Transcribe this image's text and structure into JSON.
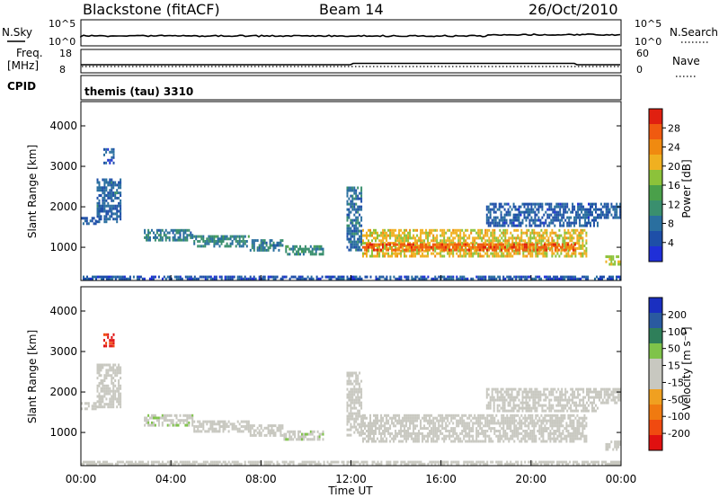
{
  "header": {
    "station": "Blackstone (fitACF)",
    "beam": "Beam 14",
    "date": "26/Oct/2010"
  },
  "aux_panels": {
    "nsky": {
      "label": "N.Sky",
      "ticks": [
        "10^5",
        "10^0"
      ]
    },
    "nsearch": {
      "label": "N.Search",
      "ticks": [
        "10^5",
        "10^0"
      ]
    },
    "freq": {
      "label_line1": "Freq.",
      "label_line2": "[MHz]",
      "ticks": [
        "18",
        "8"
      ]
    },
    "nave": {
      "label": "Nave",
      "ticks": [
        "60",
        "0"
      ]
    },
    "cpid": {
      "label": "CPID",
      "value": "themis (tau) 3310"
    }
  },
  "colors": {
    "power_scale": [
      "#1f2fd8",
      "#1e4fa8",
      "#2a6f9f",
      "#3a8f6e",
      "#4aa04a",
      "#8cc23a",
      "#f0b020",
      "#f08a10",
      "#f05a10",
      "#e02010"
    ],
    "velocity_scale": [
      "#1a2fc0",
      "#2a5aa0",
      "#2f7f5a",
      "#7fc34a",
      "#c8c8c0",
      "#c8c8c0",
      "#f0a020",
      "#f07a10",
      "#f04a10",
      "#e01010"
    ]
  },
  "chart_data": [
    {
      "type": "heatmap",
      "title": "Power",
      "xlabel": "",
      "ylabel": "Slant Range [km]",
      "xlim_hours": [
        0,
        24
      ],
      "ylim": [
        180,
        4600
      ],
      "y_ticks": [
        "1000",
        "2000",
        "3000",
        "4000"
      ],
      "colorbar": {
        "label": "Power [dB]",
        "ticks": [
          "4",
          "8",
          "12",
          "16",
          "20",
          "24",
          "28"
        ],
        "range": [
          0,
          32
        ]
      },
      "bands": [
        {
          "start_h": 0.0,
          "end_h": 0.7,
          "low_km": 1550,
          "high_km": 1750,
          "value": 6
        },
        {
          "start_h": 0.7,
          "end_h": 1.8,
          "low_km": 1600,
          "high_km": 2700,
          "value": 7
        },
        {
          "start_h": 1.0,
          "end_h": 1.5,
          "low_km": 3050,
          "high_km": 3450,
          "value": 6
        },
        {
          "start_h": 2.8,
          "end_h": 5.0,
          "low_km": 1150,
          "high_km": 1450,
          "value": 9
        },
        {
          "start_h": 5.0,
          "end_h": 7.5,
          "low_km": 1000,
          "high_km": 1300,
          "value": 10
        },
        {
          "start_h": 7.5,
          "end_h": 9.0,
          "low_km": 900,
          "high_km": 1200,
          "value": 9
        },
        {
          "start_h": 9.0,
          "end_h": 10.8,
          "low_km": 800,
          "high_km": 1050,
          "value": 11
        },
        {
          "start_h": 11.8,
          "end_h": 12.5,
          "low_km": 900,
          "high_km": 2500,
          "value": 8
        },
        {
          "start_h": 12.5,
          "end_h": 22.5,
          "low_km": 750,
          "high_km": 1450,
          "value": 20
        },
        {
          "start_h": 12.5,
          "end_h": 22.0,
          "low_km": 900,
          "high_km": 1100,
          "value": 27
        },
        {
          "start_h": 18.0,
          "end_h": 23.0,
          "low_km": 1500,
          "high_km": 2100,
          "value": 6
        },
        {
          "start_h": 23.0,
          "end_h": 24.0,
          "low_km": 1700,
          "high_km": 2100,
          "value": 6
        },
        {
          "start_h": 23.3,
          "end_h": 24.0,
          "low_km": 550,
          "high_km": 800,
          "value": 19
        },
        {
          "start_h": 0.0,
          "end_h": 24.0,
          "low_km": 200,
          "high_km": 300,
          "value": 5
        }
      ]
    },
    {
      "type": "heatmap",
      "title": "Velocity",
      "xlabel": "Time UT",
      "ylabel": "Slant Range [km]",
      "xlim_hours": [
        0,
        24
      ],
      "x_ticks": [
        "00:00",
        "04:00",
        "08:00",
        "12:00",
        "16:00",
        "20:00",
        "00:00"
      ],
      "ylim": [
        180,
        4600
      ],
      "y_ticks": [
        "1000",
        "2000",
        "3000",
        "4000"
      ],
      "colorbar": {
        "label": "Velocity [m s⁻¹]",
        "ticks": [
          "200",
          "100",
          "50",
          "15",
          "-15",
          "-50",
          "-100",
          "-200"
        ],
        "range": [
          -250,
          250
        ]
      },
      "bands": [
        {
          "start_h": 0.0,
          "end_h": 0.7,
          "low_km": 1550,
          "high_km": 1750,
          "value": 0
        },
        {
          "start_h": 0.7,
          "end_h": 1.8,
          "low_km": 1600,
          "high_km": 2700,
          "value": 0
        },
        {
          "start_h": 1.0,
          "end_h": 1.5,
          "low_km": 3100,
          "high_km": 3450,
          "value": 200
        },
        {
          "start_h": 2.8,
          "end_h": 5.0,
          "low_km": 1150,
          "high_km": 1450,
          "value": -40
        },
        {
          "start_h": 5.0,
          "end_h": 7.5,
          "low_km": 1000,
          "high_km": 1300,
          "value": 0
        },
        {
          "start_h": 7.5,
          "end_h": 9.0,
          "low_km": 900,
          "high_km": 1200,
          "value": 0
        },
        {
          "start_h": 9.0,
          "end_h": 10.8,
          "low_km": 800,
          "high_km": 1050,
          "value": -40
        },
        {
          "start_h": 11.8,
          "end_h": 12.5,
          "low_km": 900,
          "high_km": 2500,
          "value": 0
        },
        {
          "start_h": 12.5,
          "end_h": 22.5,
          "low_km": 750,
          "high_km": 1450,
          "value": 0
        },
        {
          "start_h": 18.0,
          "end_h": 23.0,
          "low_km": 1500,
          "high_km": 2100,
          "value": 0
        },
        {
          "start_h": 23.0,
          "end_h": 24.0,
          "low_km": 1700,
          "high_km": 2100,
          "value": 0
        },
        {
          "start_h": 23.3,
          "end_h": 24.0,
          "low_km": 550,
          "high_km": 800,
          "value": 0
        },
        {
          "start_h": 0.0,
          "end_h": 24.0,
          "low_km": 200,
          "high_km": 300,
          "value": 0
        }
      ]
    }
  ]
}
